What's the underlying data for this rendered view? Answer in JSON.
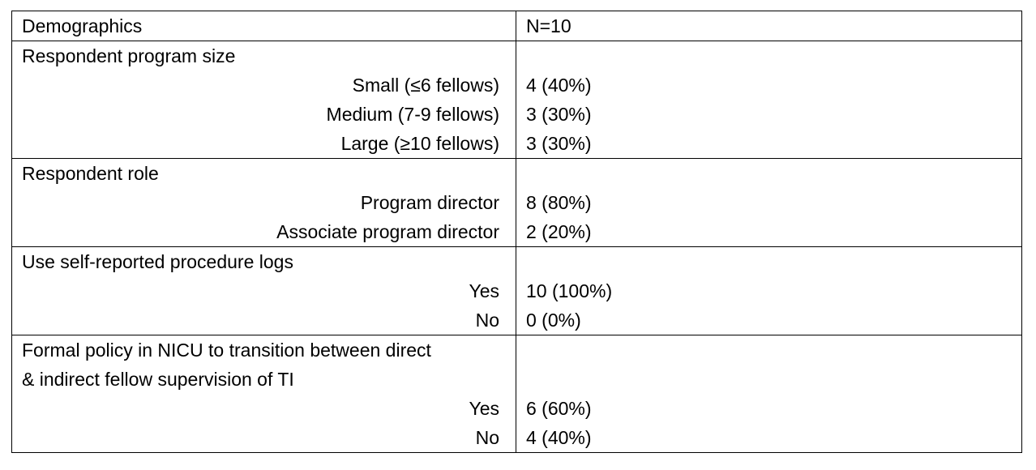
{
  "table": {
    "header": {
      "label": "Demographics",
      "value": "N=10"
    },
    "sections": [
      {
        "heading_lines": [
          "Respondent program size"
        ],
        "rows": [
          {
            "label": "Small (≤6 fellows)",
            "value": "4 (40%)"
          },
          {
            "label": "Medium (7-9 fellows)",
            "value": "3 (30%)"
          },
          {
            "label": "Large (≥10 fellows)",
            "value": "3 (30%)"
          }
        ]
      },
      {
        "heading_lines": [
          "Respondent role"
        ],
        "rows": [
          {
            "label": "Program director",
            "value": "8 (80%)"
          },
          {
            "label": "Associate program director",
            "value": "2 (20%)"
          }
        ]
      },
      {
        "heading_lines": [
          "Use self-reported procedure logs"
        ],
        "rows": [
          {
            "label": "Yes",
            "value": "10 (100%)"
          },
          {
            "label": "No",
            "value": "0 (0%)"
          }
        ]
      },
      {
        "heading_lines": [
          "Formal policy in NICU to transition between direct",
          "& indirect fellow supervision of TI"
        ],
        "rows": [
          {
            "label": "Yes",
            "value": "6 (60%)"
          },
          {
            "label": "No",
            "value": "4 (40%)"
          }
        ]
      }
    ]
  }
}
